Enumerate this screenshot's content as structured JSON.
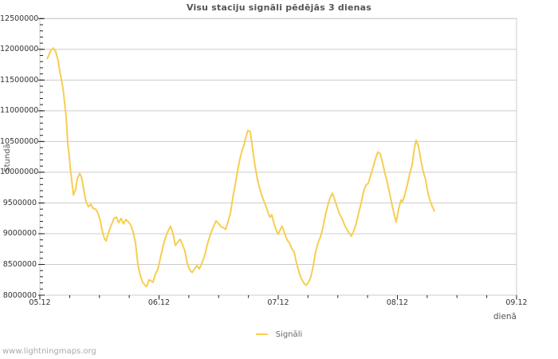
{
  "page": {
    "watermark": "www.lightningmaps.org"
  },
  "colors": {
    "line": "#f6ce51",
    "grid": "#cccccc",
    "tick": "#222222",
    "tick_label": "#333333",
    "title": "#555555",
    "watermark": "#a9a9a9"
  },
  "chart_data": {
    "type": "line",
    "title": "Visu staciju signāli pēdējās 3 dienas",
    "xlabel": "dienā",
    "ylabel": "Stundā",
    "grid": "horizontal",
    "legend": {
      "position": "bottom-center",
      "entries": [
        {
          "label": "Signāli",
          "color": "#f6ce51"
        }
      ]
    },
    "x_axis": {
      "range_days": [
        0,
        4
      ],
      "minor_step_days": 0.25,
      "ticks": [
        {
          "day": 0,
          "label": "05.12"
        },
        {
          "day": 1,
          "label": "06.12"
        },
        {
          "day": 2,
          "label": "07.12"
        },
        {
          "day": 3,
          "label": "08.12"
        },
        {
          "day": 4,
          "label": "09.12"
        }
      ]
    },
    "y_axis": {
      "range": [
        8000000,
        12500000
      ],
      "minor_step": 100000,
      "ticks": [
        {
          "value": 8000000,
          "label": "8000000"
        },
        {
          "value": 8500000,
          "label": "8500000"
        },
        {
          "value": 9000000,
          "label": "9000000"
        },
        {
          "value": 9500000,
          "label": "9500000"
        },
        {
          "value": 10000000,
          "label": "10000000"
        },
        {
          "value": 10500000,
          "label": "10500000"
        },
        {
          "value": 11000000,
          "label": "11000000"
        },
        {
          "value": 11500000,
          "label": "11500000"
        },
        {
          "value": 12000000,
          "label": "12000000"
        },
        {
          "value": 12500000,
          "label": "12500000"
        }
      ]
    },
    "series": [
      {
        "name": "Signāli",
        "color": "#f6ce51",
        "points": [
          [
            0.062,
            11850000
          ],
          [
            0.08,
            11930000
          ],
          [
            0.094,
            11990000
          ],
          [
            0.114,
            12020000
          ],
          [
            0.134,
            11960000
          ],
          [
            0.154,
            11810000
          ],
          [
            0.167,
            11640000
          ],
          [
            0.181,
            11500000
          ],
          [
            0.194,
            11370000
          ],
          [
            0.207,
            11150000
          ],
          [
            0.221,
            10900000
          ],
          [
            0.234,
            10470000
          ],
          [
            0.247,
            10270000
          ],
          [
            0.254,
            10090000
          ],
          [
            0.268,
            9860000
          ],
          [
            0.281,
            9630000
          ],
          [
            0.301,
            9730000
          ],
          [
            0.314,
            9890000
          ],
          [
            0.334,
            9980000
          ],
          [
            0.348,
            9930000
          ],
          [
            0.361,
            9800000
          ],
          [
            0.375,
            9640000
          ],
          [
            0.388,
            9520000
          ],
          [
            0.408,
            9440000
          ],
          [
            0.428,
            9480000
          ],
          [
            0.448,
            9410000
          ],
          [
            0.468,
            9400000
          ],
          [
            0.488,
            9330000
          ],
          [
            0.508,
            9210000
          ],
          [
            0.522,
            9060000
          ],
          [
            0.542,
            8920000
          ],
          [
            0.555,
            8880000
          ],
          [
            0.575,
            9010000
          ],
          [
            0.595,
            9120000
          ],
          [
            0.622,
            9250000
          ],
          [
            0.642,
            9270000
          ],
          [
            0.662,
            9180000
          ],
          [
            0.682,
            9250000
          ],
          [
            0.702,
            9160000
          ],
          [
            0.722,
            9230000
          ],
          [
            0.743,
            9190000
          ],
          [
            0.763,
            9140000
          ],
          [
            0.783,
            9020000
          ],
          [
            0.803,
            8850000
          ],
          [
            0.823,
            8500000
          ],
          [
            0.843,
            8320000
          ],
          [
            0.863,
            8210000
          ],
          [
            0.883,
            8160000
          ],
          [
            0.896,
            8140000
          ],
          [
            0.916,
            8250000
          ],
          [
            0.936,
            8230000
          ],
          [
            0.95,
            8210000
          ],
          [
            0.97,
            8350000
          ],
          [
            0.99,
            8420000
          ],
          [
            1.017,
            8650000
          ],
          [
            1.037,
            8820000
          ],
          [
            1.057,
            8950000
          ],
          [
            1.077,
            9050000
          ],
          [
            1.097,
            9120000
          ],
          [
            1.117,
            9000000
          ],
          [
            1.137,
            8810000
          ],
          [
            1.157,
            8860000
          ],
          [
            1.177,
            8910000
          ],
          [
            1.197,
            8820000
          ],
          [
            1.217,
            8720000
          ],
          [
            1.237,
            8520000
          ],
          [
            1.258,
            8410000
          ],
          [
            1.278,
            8370000
          ],
          [
            1.298,
            8430000
          ],
          [
            1.318,
            8480000
          ],
          [
            1.338,
            8430000
          ],
          [
            1.358,
            8510000
          ],
          [
            1.385,
            8660000
          ],
          [
            1.405,
            8820000
          ],
          [
            1.425,
            8950000
          ],
          [
            1.445,
            9060000
          ],
          [
            1.465,
            9150000
          ],
          [
            1.478,
            9210000
          ],
          [
            1.498,
            9170000
          ],
          [
            1.518,
            9120000
          ],
          [
            1.538,
            9100000
          ],
          [
            1.559,
            9070000
          ],
          [
            1.579,
            9200000
          ],
          [
            1.599,
            9340000
          ],
          [
            1.619,
            9580000
          ],
          [
            1.639,
            9800000
          ],
          [
            1.659,
            10020000
          ],
          [
            1.679,
            10220000
          ],
          [
            1.699,
            10370000
          ],
          [
            1.712,
            10430000
          ],
          [
            1.726,
            10550000
          ],
          [
            1.746,
            10680000
          ],
          [
            1.766,
            10660000
          ],
          [
            1.786,
            10370000
          ],
          [
            1.806,
            10100000
          ],
          [
            1.826,
            9880000
          ],
          [
            1.846,
            9730000
          ],
          [
            1.866,
            9600000
          ],
          [
            1.886,
            9500000
          ],
          [
            1.906,
            9400000
          ],
          [
            1.92,
            9310000
          ],
          [
            1.933,
            9270000
          ],
          [
            1.946,
            9310000
          ],
          [
            1.967,
            9150000
          ],
          [
            1.987,
            9040000
          ],
          [
            2.0,
            8990000
          ],
          [
            2.02,
            9080000
          ],
          [
            2.033,
            9120000
          ],
          [
            2.054,
            9010000
          ],
          [
            2.074,
            8900000
          ],
          [
            2.094,
            8850000
          ],
          [
            2.114,
            8760000
          ],
          [
            2.134,
            8700000
          ],
          [
            2.154,
            8520000
          ],
          [
            2.174,
            8380000
          ],
          [
            2.194,
            8270000
          ],
          [
            2.214,
            8200000
          ],
          [
            2.234,
            8160000
          ],
          [
            2.254,
            8210000
          ],
          [
            2.274,
            8300000
          ],
          [
            2.294,
            8480000
          ],
          [
            2.314,
            8700000
          ],
          [
            2.334,
            8850000
          ],
          [
            2.355,
            8950000
          ],
          [
            2.375,
            9100000
          ],
          [
            2.395,
            9300000
          ],
          [
            2.415,
            9450000
          ],
          [
            2.435,
            9580000
          ],
          [
            2.455,
            9660000
          ],
          [
            2.475,
            9550000
          ],
          [
            2.495,
            9430000
          ],
          [
            2.515,
            9320000
          ],
          [
            2.535,
            9250000
          ],
          [
            2.555,
            9150000
          ],
          [
            2.575,
            9070000
          ],
          [
            2.595,
            9010000
          ],
          [
            2.615,
            8960000
          ],
          [
            2.635,
            9050000
          ],
          [
            2.656,
            9180000
          ],
          [
            2.676,
            9350000
          ],
          [
            2.696,
            9500000
          ],
          [
            2.716,
            9680000
          ],
          [
            2.736,
            9790000
          ],
          [
            2.756,
            9820000
          ],
          [
            2.776,
            9950000
          ],
          [
            2.796,
            10080000
          ],
          [
            2.816,
            10220000
          ],
          [
            2.836,
            10330000
          ],
          [
            2.856,
            10300000
          ],
          [
            2.876,
            10150000
          ],
          [
            2.896,
            9980000
          ],
          [
            2.916,
            9830000
          ],
          [
            2.936,
            9650000
          ],
          [
            2.957,
            9450000
          ],
          [
            2.977,
            9280000
          ],
          [
            2.99,
            9190000
          ],
          [
            3.01,
            9400000
          ],
          [
            3.03,
            9550000
          ],
          [
            3.043,
            9520000
          ],
          [
            3.064,
            9650000
          ],
          [
            3.084,
            9800000
          ],
          [
            3.104,
            9980000
          ],
          [
            3.124,
            10120000
          ],
          [
            3.144,
            10400000
          ],
          [
            3.157,
            10520000
          ],
          [
            3.177,
            10420000
          ],
          [
            3.197,
            10200000
          ],
          [
            3.211,
            10060000
          ],
          [
            3.224,
            9960000
          ],
          [
            3.237,
            9880000
          ],
          [
            3.251,
            9720000
          ],
          [
            3.264,
            9600000
          ],
          [
            3.278,
            9520000
          ],
          [
            3.291,
            9450000
          ],
          [
            3.311,
            9370000
          ]
        ]
      }
    ]
  }
}
